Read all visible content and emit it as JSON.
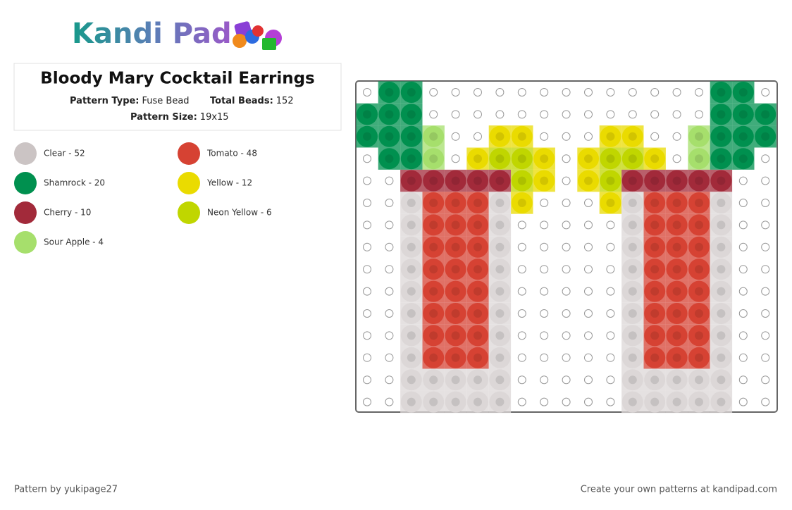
{
  "logo": "Kandi Pad",
  "card": {
    "title": "Bloody Mary Cocktail Earrings",
    "pattern_type_label": "Pattern Type:",
    "pattern_type": "Fuse Bead",
    "total_beads_label": "Total Beads:",
    "total_beads": "152",
    "pattern_size_label": "Pattern Size:",
    "pattern_size": "19x15"
  },
  "legend": [
    {
      "label": "Clear - 52",
      "color": "#cbc4c4"
    },
    {
      "label": "Tomato - 48",
      "color": "#d64233"
    },
    {
      "label": "Shamrock - 20",
      "color": "#00904f"
    },
    {
      "label": "Yellow - 12",
      "color": "#eadb00"
    },
    {
      "label": "Cherry - 10",
      "color": "#a22a3a"
    },
    {
      "label": "Neon Yellow - 6",
      "color": "#c0d600"
    },
    {
      "label": "Sour Apple - 4",
      "color": "#a6df6c"
    }
  ],
  "footer": {
    "author": "Pattern by yukipage27",
    "cta": "Create your own patterns at kandipad.com"
  }
}
